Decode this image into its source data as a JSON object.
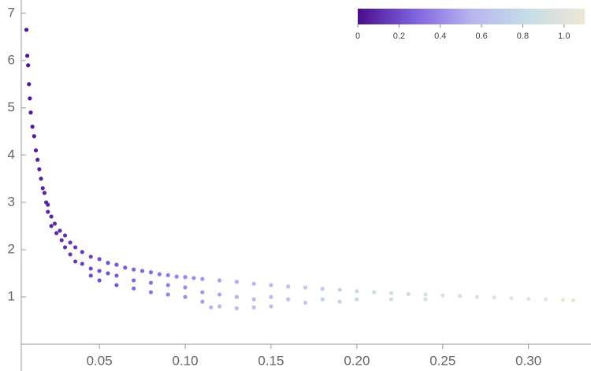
{
  "chart_data": {
    "type": "scatter",
    "x": [
      0.0075,
      0.008,
      0.0085,
      0.009,
      0.0095,
      0.01,
      0.011,
      0.012,
      0.013,
      0.014,
      0.015,
      0.016,
      0.017,
      0.018,
      0.019,
      0.02,
      0.02,
      0.022,
      0.022,
      0.024,
      0.025,
      0.027,
      0.028,
      0.03,
      0.03,
      0.033,
      0.033,
      0.036,
      0.036,
      0.04,
      0.04,
      0.045,
      0.045,
      0.045,
      0.05,
      0.05,
      0.05,
      0.055,
      0.055,
      0.06,
      0.06,
      0.06,
      0.065,
      0.07,
      0.07,
      0.07,
      0.075,
      0.08,
      0.08,
      0.08,
      0.085,
      0.09,
      0.09,
      0.09,
      0.095,
      0.1,
      0.1,
      0.1,
      0.105,
      0.11,
      0.11,
      0.11,
      0.115,
      0.12,
      0.12,
      0.12,
      0.13,
      0.13,
      0.13,
      0.14,
      0.14,
      0.14,
      0.15,
      0.15,
      0.15,
      0.16,
      0.16,
      0.17,
      0.17,
      0.18,
      0.18,
      0.19,
      0.19,
      0.2,
      0.2,
      0.21,
      0.22,
      0.22,
      0.23,
      0.24,
      0.24,
      0.25,
      0.26,
      0.27,
      0.28,
      0.29,
      0.3,
      0.31,
      0.32,
      0.326
    ],
    "values": [
      6.65,
      6.1,
      5.9,
      5.5,
      5.2,
      4.9,
      4.6,
      4.4,
      4.1,
      3.9,
      3.7,
      3.5,
      3.3,
      3.2,
      3.0,
      2.8,
      2.95,
      2.7,
      2.5,
      2.55,
      2.35,
      2.4,
      2.2,
      2.3,
      2.05,
      2.15,
      1.9,
      2.05,
      1.75,
      1.95,
      1.7,
      1.85,
      1.6,
      1.45,
      1.8,
      1.55,
      1.35,
      1.72,
      1.5,
      1.68,
      1.45,
      1.25,
      1.62,
      1.58,
      1.35,
      1.18,
      1.55,
      1.52,
      1.3,
      1.1,
      1.48,
      1.46,
      1.25,
      1.05,
      1.43,
      1.42,
      1.2,
      1.0,
      1.4,
      1.38,
      1.1,
      0.9,
      0.78,
      1.35,
      1.05,
      0.8,
      1.32,
      1.0,
      0.76,
      1.28,
      0.95,
      0.78,
      1.25,
      1.0,
      0.8,
      1.22,
      0.95,
      1.2,
      0.88,
      1.17,
      0.95,
      1.15,
      0.9,
      1.12,
      0.95,
      1.1,
      1.08,
      0.95,
      1.06,
      1.05,
      0.95,
      1.03,
      1.02,
      1.0,
      0.99,
      0.97,
      0.96,
      0.95,
      0.94,
      0.93
    ],
    "color_values": [
      0.02,
      0.03,
      0.03,
      0.04,
      0.04,
      0.05,
      0.05,
      0.05,
      0.06,
      0.06,
      0.07,
      0.07,
      0.07,
      0.08,
      0.08,
      0.08,
      0.08,
      0.09,
      0.09,
      0.1,
      0.1,
      0.11,
      0.11,
      0.12,
      0.12,
      0.13,
      0.14,
      0.14,
      0.15,
      0.16,
      0.17,
      0.18,
      0.19,
      0.2,
      0.2,
      0.21,
      0.22,
      0.22,
      0.23,
      0.24,
      0.25,
      0.25,
      0.26,
      0.28,
      0.29,
      0.3,
      0.3,
      0.32,
      0.33,
      0.34,
      0.34,
      0.36,
      0.37,
      0.38,
      0.38,
      0.4,
      0.41,
      0.42,
      0.42,
      0.44,
      0.45,
      0.47,
      0.55,
      0.48,
      0.5,
      0.57,
      0.52,
      0.54,
      0.6,
      0.56,
      0.58,
      0.62,
      0.6,
      0.6,
      0.64,
      0.64,
      0.65,
      0.68,
      0.68,
      0.72,
      0.72,
      0.76,
      0.76,
      0.8,
      0.8,
      0.84,
      0.88,
      0.88,
      0.9,
      0.92,
      0.92,
      0.95,
      0.97,
      0.99,
      1.01,
      1.03,
      1.05,
      1.07,
      1.09,
      1.1
    ],
    "colormap": [
      "#4a0c8b",
      "#7e62e0",
      "#b7b5ef",
      "#c6dde8",
      "#efe6d4"
    ],
    "clim": [
      0,
      1.1
    ],
    "cticks": [
      0,
      0.2,
      0.4,
      0.6,
      0.8,
      {
        "value": 1,
        "label": "1.0"
      }
    ],
    "xlim": [
      0.0045,
      0.3364
    ],
    "xticks": [
      0.05,
      {
        "value": 0.1,
        "label": "0.10"
      },
      0.15,
      {
        "value": 0.2,
        "label": "0.20"
      },
      0.25,
      {
        "value": 0.3,
        "label": "0.30"
      }
    ],
    "ylim": [
      0,
      7.28
    ],
    "yticks": [
      1,
      2,
      3,
      4,
      5,
      6,
      7
    ],
    "legend": "top-right"
  }
}
